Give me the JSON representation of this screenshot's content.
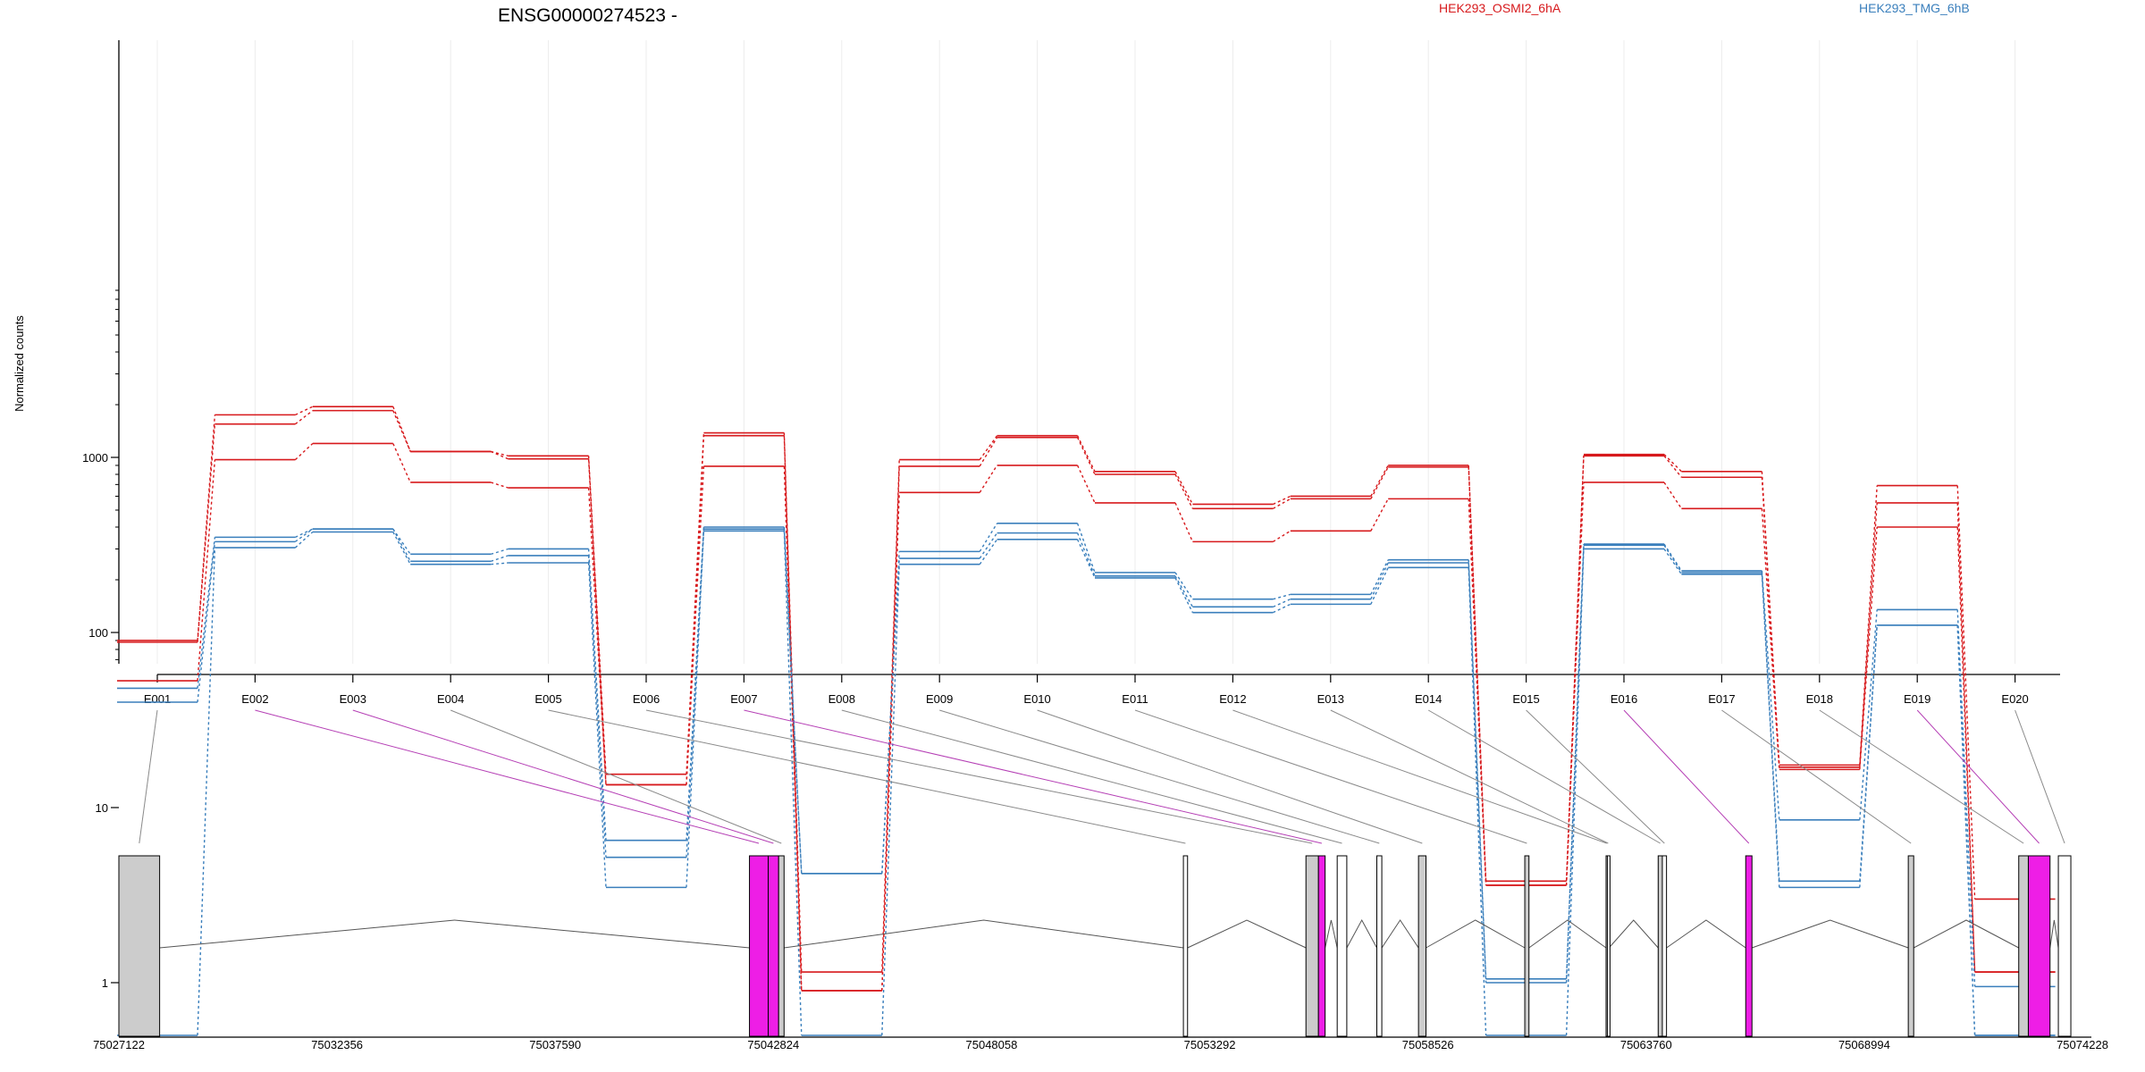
{
  "chart_data": {
    "type": "line",
    "title": "ENSG00000274523 -",
    "xlabel": "",
    "ylabel": "Normalized counts",
    "yscale": "log",
    "yticks": [
      1,
      10,
      100,
      1000
    ],
    "grid": "vertical light gridlines at each exon",
    "legend_position": "top",
    "categories": [
      "E001",
      "E002",
      "E003",
      "E004",
      "E005",
      "E006",
      "E007",
      "E008",
      "E009",
      "E010",
      "E011",
      "E012",
      "E013",
      "E014",
      "E015",
      "E016",
      "E017",
      "E018",
      "E019",
      "E020"
    ],
    "series": [
      {
        "name": "HEK293_OSMI2_6hA",
        "color": "#D7191C",
        "values": [
          90,
          1750,
          1950,
          1080,
          1020,
          15.5,
          1380,
          1.15,
          970,
          1330,
          830,
          540,
          600,
          900,
          3.8,
          1040,
          830,
          17.5,
          690,
          3.0
        ]
      },
      {
        "group": "HEK293_OSMI2_6hA",
        "color": "#D7191C",
        "values": [
          88,
          1550,
          1850,
          1080,
          980,
          13.5,
          1330,
          0.9,
          890,
          1300,
          800,
          510,
          580,
          880,
          3.6,
          1020,
          770,
          17.0,
          550,
          1.15
        ]
      },
      {
        "group": "HEK293_OSMI2_6hA",
        "color": "#D7191C",
        "values": [
          53,
          970,
          1200,
          720,
          670,
          13.5,
          890,
          0.9,
          630,
          900,
          550,
          330,
          380,
          580,
          3.6,
          720,
          510,
          16.5,
          400,
          1.15
        ]
      },
      {
        "name": "HEK293_TMG_6hB",
        "color": "#3A7FBC",
        "values": [
          48,
          350,
          390,
          280,
          300,
          6.5,
          400,
          4.2,
          290,
          420,
          220,
          155,
          165,
          260,
          1.05,
          320,
          225,
          8.5,
          135,
          0.95
        ]
      },
      {
        "group": "HEK293_TMG_6hB",
        "color": "#3A7FBC",
        "values": [
          40,
          330,
          390,
          255,
          275,
          5.2,
          390,
          4.2,
          265,
          370,
          210,
          140,
          155,
          250,
          1.0,
          315,
          220,
          3.8,
          110,
          0.5
        ]
      },
      {
        "group": "HEK293_TMG_6hB",
        "color": "#3A7FBC",
        "values": [
          0.5,
          305,
          375,
          245,
          250,
          3.5,
          380,
          0.5,
          245,
          340,
          205,
          130,
          145,
          235,
          0.5,
          300,
          215,
          3.5,
          110,
          0.5
        ]
      }
    ],
    "genomic_axis": {
      "tick_labels": [
        "75027122",
        "75032356",
        "75037590",
        "75042824",
        "75048058",
        "75053292",
        "75058526",
        "75063760",
        "75068994",
        "75074228"
      ],
      "range": [
        75027122,
        75074228
      ]
    },
    "exon_blocks": [
      {
        "exon": "E001",
        "start": 75027122,
        "end": 75028100,
        "color": "#CCCCCC"
      },
      {
        "exon": "E002",
        "start": 75042250,
        "end": 75042700,
        "color": "#EE1EE6"
      },
      {
        "exon": "E003",
        "start": 75042700,
        "end": 75042950,
        "color": "#EE1EE6"
      },
      {
        "exon": "E004",
        "start": 75042950,
        "end": 75043080,
        "color": "#CCCCCC"
      },
      {
        "exon": "E005",
        "start": 75052660,
        "end": 75052760,
        "color": "#FFFFFF"
      },
      {
        "exon": "E006",
        "start": 75055600,
        "end": 75055900,
        "color": "#CCCCCC"
      },
      {
        "exon": "E007",
        "start": 75055900,
        "end": 75056060,
        "color": "#EE1EE6"
      },
      {
        "exon": "E008",
        "start": 75056350,
        "end": 75056580,
        "color": "#FFFFFF"
      },
      {
        "exon": "E009",
        "start": 75057300,
        "end": 75057420,
        "color": "#FFFFFF"
      },
      {
        "exon": "E010",
        "start": 75058300,
        "end": 75058480,
        "color": "#CCCCCC"
      },
      {
        "exon": "E011",
        "start": 75060850,
        "end": 75060950,
        "color": "#CCCCCC"
      },
      {
        "exon": "E012",
        "start": 75062800,
        "end": 75062830,
        "color": "#FFFFFF"
      },
      {
        "exon": "E013",
        "start": 75062830,
        "end": 75062870,
        "color": "#FFFFFF"
      },
      {
        "exon": "E014",
        "start": 75064050,
        "end": 75064150,
        "color": "#CCCCCC"
      },
      {
        "exon": "E015",
        "start": 75064150,
        "end": 75064250,
        "color": "#FFFFFF"
      },
      {
        "exon": "E016",
        "start": 75066150,
        "end": 75066300,
        "color": "#EE1EE6"
      },
      {
        "exon": "E017",
        "start": 75070050,
        "end": 75070180,
        "color": "#CCCCCC"
      },
      {
        "exon": "E018",
        "start": 75072700,
        "end": 75072930,
        "color": "#CCCCCC"
      },
      {
        "exon": "E019",
        "start": 75072930,
        "end": 75073450,
        "color": "#EE1EE6"
      },
      {
        "exon": "E020",
        "start": 75073650,
        "end": 75073950,
        "color": "#FFFFFF"
      }
    ]
  }
}
